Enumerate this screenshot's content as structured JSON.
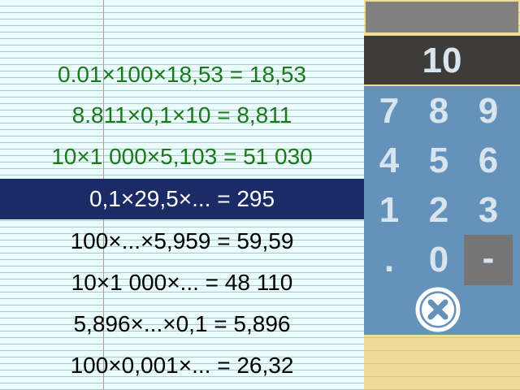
{
  "exercises": [
    {
      "text": "0.01×100×18,53 = 18,53",
      "state": "done"
    },
    {
      "text": "8.811×0,1×10 = 8,811",
      "state": "done"
    },
    {
      "text": "10×1 000×5,103 = 51 030",
      "state": "done"
    },
    {
      "text": "0,1×29,5×... = 295",
      "state": "active"
    },
    {
      "text": "100×...×5,959 = 59,59",
      "state": "pending"
    },
    {
      "text": "10×1 000×... = 48 110",
      "state": "pending"
    },
    {
      "text": "5,896×...×0,1 = 5,896",
      "state": "pending"
    },
    {
      "text": "100×0,001×... = 26,32",
      "state": "pending"
    }
  ],
  "display": {
    "value": "10"
  },
  "keypad": {
    "keys": [
      "7",
      "8",
      "9",
      "4",
      "5",
      "6",
      "1",
      "2",
      "3",
      ".",
      "0",
      "-"
    ]
  },
  "icons": {
    "clear": "close-circle-icon"
  },
  "colors": {
    "done_text": "#1a7a1a",
    "active_bg": "#1a2b66",
    "keypad_bg": "#6592bb",
    "display_bg": "#3d3c38"
  }
}
